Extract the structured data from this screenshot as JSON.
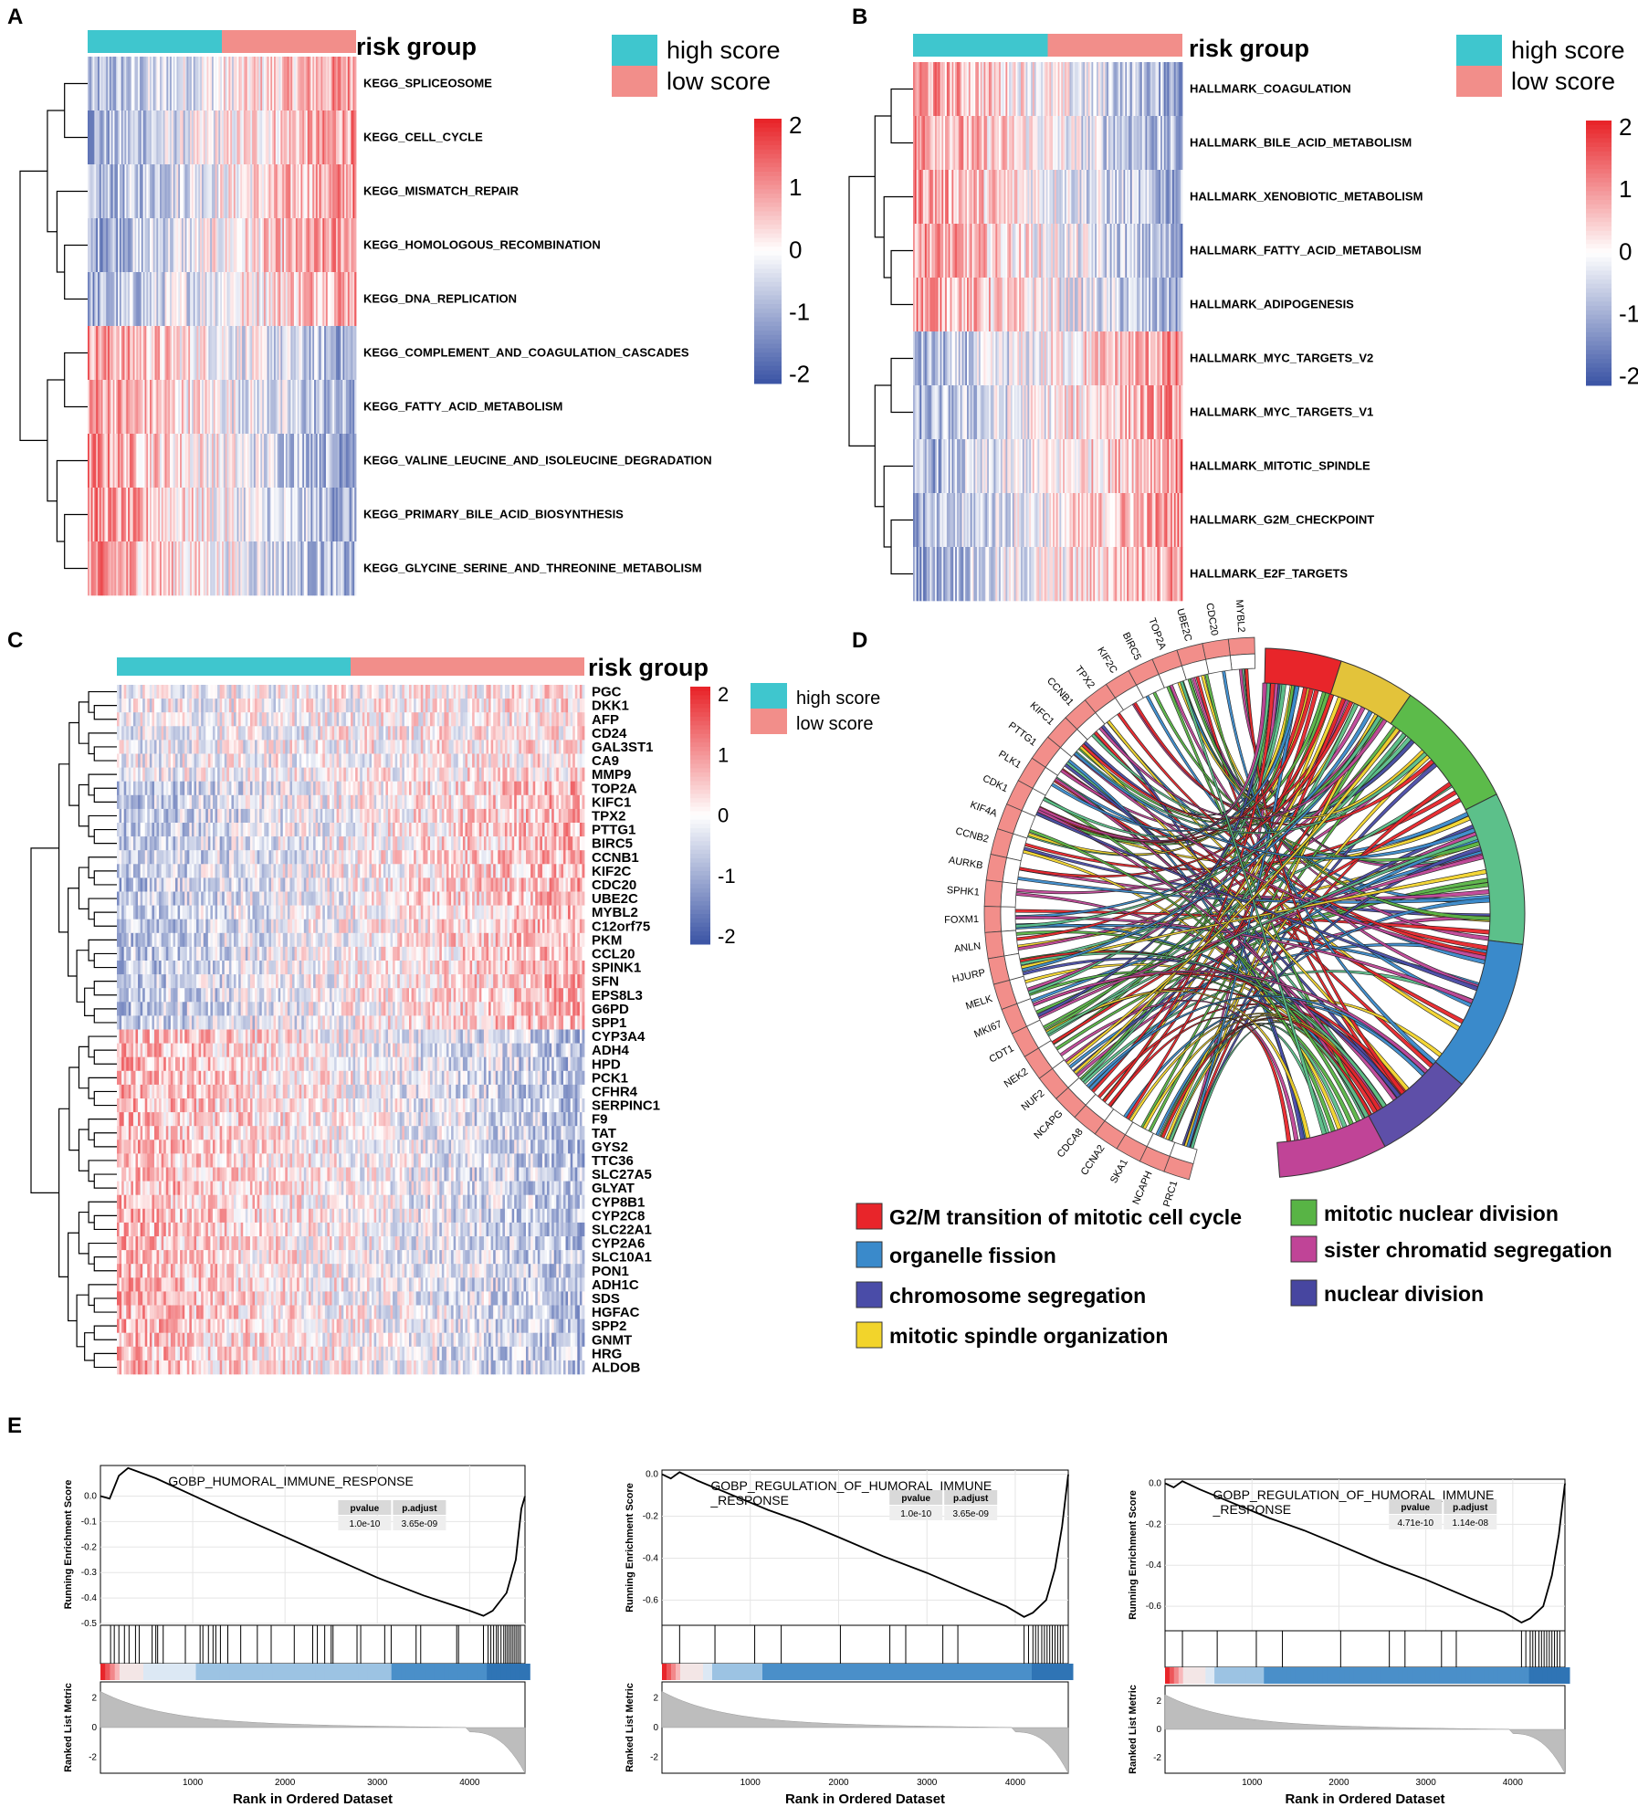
{
  "panels": {
    "a": "A",
    "b": "B",
    "c": "C",
    "d": "D",
    "e": "E"
  },
  "colors": {
    "high": "#3FC6CE",
    "low": "#F28E8A",
    "hot": "#E8252A",
    "cold": "#3D56A6",
    "mid": "#FFFFFF"
  },
  "chart_data": [
    {
      "type": "heatmap",
      "panel": "A",
      "annotation_title": "risk group",
      "legend": [
        "high score",
        "low score"
      ],
      "colorbar_ticks": [
        "2",
        "1",
        "0",
        "-1",
        "-2"
      ],
      "value_range": [
        -2,
        2
      ],
      "rows": [
        "KEGG_SPLICEOSOME",
        "KEGG_CELL_CYCLE",
        "KEGG_MISMATCH_REPAIR",
        "KEGG_HOMOLOGOUS_RECOMBINATION",
        "KEGG_DNA_REPLICATION",
        "KEGG_COMPLEMENT_AND_COAGULATION_CASCADES",
        "KEGG_FATTY_ACID_METABOLISM",
        "KEGG_VALINE_LEUCINE_AND_ISOLEUCINE_DEGRADATION",
        "KEGG_PRIMARY_BILE_ACID_BIOSYNTHESIS",
        "KEGG_GLYCINE_SERINE_AND_THREONINE_METABOLISM"
      ],
      "row_pattern": [
        1,
        1,
        1,
        1,
        1,
        -1,
        -1,
        -1,
        -1,
        -1
      ]
    },
    {
      "type": "heatmap",
      "panel": "B",
      "annotation_title": "risk group",
      "legend": [
        "high score",
        "low score"
      ],
      "colorbar_ticks": [
        "2",
        "1",
        "0",
        "-1",
        "-2"
      ],
      "value_range": [
        -2,
        2
      ],
      "rows": [
        "HALLMARK_COAGULATION",
        "HALLMARK_BILE_ACID_METABOLISM",
        "HALLMARK_XENOBIOTIC_METABOLISM",
        "HALLMARK_FATTY_ACID_METABOLISM",
        "HALLMARK_ADIPOGENESIS",
        "HALLMARK_MYC_TARGETS_V2",
        "HALLMARK_MYC_TARGETS_V1",
        "HALLMARK_MITOTIC_SPINDLE",
        "HALLMARK_G2M_CHECKPOINT",
        "HALLMARK_E2F_TARGETS"
      ],
      "row_pattern": [
        -1,
        -1,
        -1,
        -1,
        -1,
        1,
        1,
        1,
        1,
        1
      ]
    },
    {
      "type": "heatmap",
      "panel": "C",
      "annotation_title": "risk group",
      "legend": [
        "high score",
        "low score"
      ],
      "colorbar_ticks": [
        "2",
        "1",
        "0",
        "-1",
        "-2"
      ],
      "value_range": [
        -2,
        2
      ],
      "rows": [
        "PGC",
        "DKK1",
        "AFP",
        "CD24",
        "GAL3ST1",
        "CA9",
        "MMP9",
        "TOP2A",
        "KIFC1",
        "TPX2",
        "PTTG1",
        "BIRC5",
        "CCNB1",
        "KIF2C",
        "CDC20",
        "UBE2C",
        "MYBL2",
        "C12orf75",
        "PKM",
        "CCL20",
        "SPINK1",
        "SFN",
        "EPS8L3",
        "G6PD",
        "SPP1",
        "CYP3A4",
        "ADH4",
        "HPD",
        "PCK1",
        "CFHR4",
        "SERPINC1",
        "F9",
        "TAT",
        "GYS2",
        "TTC36",
        "SLC27A5",
        "GLYAT",
        "CYP8B1",
        "CYP2C8",
        "SLC22A1",
        "CYP2A6",
        "SLC10A1",
        "PON1",
        "ADH1C",
        "SDS",
        "HGFAC",
        "SPP2",
        "GNMT",
        "HRG",
        "ALDOB"
      ]
    },
    {
      "type": "chord",
      "panel": "D",
      "genes": [
        "MYBL2",
        "CDC20",
        "UBE2C",
        "TOP2A",
        "BIRC5",
        "KIF2C",
        "TPX2",
        "CCNB1",
        "KIFC1",
        "PTTG1",
        "PLK1",
        "CDK1",
        "KIF4A",
        "CCNB2",
        "AURKB",
        "SPHK1",
        "FOXM1",
        "ANLN",
        "HJURP",
        "MELK",
        "MKI67",
        "CDT1",
        "NEK2",
        "NUF2",
        "NCAPG",
        "CDCA8",
        "CCNA2",
        "SKA1",
        "NCAPH",
        "PRC1"
      ],
      "terms": [
        {
          "name": "G2/M transition of mitotic cell cycle",
          "color": "#E8252A"
        },
        {
          "name": "organelle fission",
          "color": "#3A8ACB"
        },
        {
          "name": "chromosome segregation",
          "color": "#4A4CA8"
        },
        {
          "name": "mitotic spindle organization",
          "color": "#F2D42B"
        },
        {
          "name": "mitotic nuclear division",
          "color": "#58B445"
        },
        {
          "name": "sister chromatid segregation",
          "color": "#C04497"
        },
        {
          "name": "nuclear division",
          "color": "#4746A0"
        }
      ],
      "ring_terms": [
        {
          "color": "#E8252A",
          "span": 0.07
        },
        {
          "color": "#E3C33A",
          "span": 0.07
        },
        {
          "color": "#5CBB4A",
          "span": 0.12
        },
        {
          "color": "#5CC08A",
          "span": 0.14
        },
        {
          "color": "#3A8ACB",
          "span": 0.14
        },
        {
          "color": "#5E4FA8",
          "span": 0.09
        },
        {
          "color": "#C04497",
          "span": 0.1
        }
      ]
    },
    {
      "type": "line",
      "panel": "E1",
      "title": "GOBP_HUMORAL_IMMUNE_RESPONSE",
      "title2": "",
      "ylabel": "Running Enrichment Score",
      "ylabel2": "Ranked List Metric",
      "xlabel": "Rank in Ordered Dataset",
      "ylim": [
        -0.5,
        0.12
      ],
      "yticks": [
        "0.0",
        "-0.1",
        "-0.2",
        "-0.3",
        "-0.4",
        "-0.5"
      ],
      "ytick_vals": [
        0,
        -0.1,
        -0.2,
        -0.3,
        -0.4,
        -0.5
      ],
      "xlim": [
        0,
        4600
      ],
      "xticks": [
        "1000",
        "2000",
        "3000",
        "4000"
      ],
      "xtick_vals": [
        1000,
        2000,
        3000,
        4000
      ],
      "metric_ticks": [
        "2",
        "0",
        "-2"
      ],
      "table": {
        "h1": "pvalue",
        "h2": "p.adjust",
        "v1": "1.0e-10",
        "v2": "3.65e-09"
      },
      "curve": [
        [
          0,
          0
        ],
        [
          100,
          -0.01
        ],
        [
          200,
          0.08
        ],
        [
          300,
          0.11
        ],
        [
          450,
          0.09
        ],
        [
          600,
          0.07
        ],
        [
          900,
          0.02
        ],
        [
          1200,
          -0.03
        ],
        [
          1500,
          -0.08
        ],
        [
          2000,
          -0.16
        ],
        [
          2500,
          -0.24
        ],
        [
          3000,
          -0.32
        ],
        [
          3500,
          -0.39
        ],
        [
          4000,
          -0.45
        ],
        [
          4150,
          -0.47
        ],
        [
          4250,
          -0.45
        ],
        [
          4400,
          -0.38
        ],
        [
          4500,
          -0.25
        ],
        [
          4560,
          -0.05
        ],
        [
          4600,
          0
        ]
      ],
      "hits": [
        110,
        150,
        200,
        260,
        310,
        380,
        420,
        560,
        600,
        620,
        680,
        920,
        1080,
        1110,
        1170,
        1220,
        1250,
        1300,
        1380,
        1520,
        1700,
        1850,
        2100,
        2300,
        2350,
        2430,
        2500,
        2520,
        2780,
        2820,
        3080,
        3150,
        3420,
        3470,
        3860,
        3880,
        4150,
        4200,
        4230,
        4260,
        4290,
        4310,
        4340,
        4370,
        4390,
        4410,
        4430,
        4450,
        4470,
        4490,
        4510,
        4530,
        4550
      ]
    },
    {
      "type": "line",
      "panel": "E2",
      "title": "GOBP_REGULATION_OF_HUMORAL_IMMUNE",
      "title2": "_RESPONSE",
      "ylabel": "Running Enrichment Score",
      "ylabel2": "Ranked List Metric",
      "xlabel": "Rank in Ordered Dataset",
      "ylim": [
        -0.72,
        0.02
      ],
      "yticks": [
        "0.0",
        "-0.2",
        "-0.4",
        "-0.6"
      ],
      "ytick_vals": [
        0,
        -0.2,
        -0.4,
        -0.6
      ],
      "xlim": [
        0,
        4600
      ],
      "xticks": [
        "1000",
        "2000",
        "3000",
        "4000"
      ],
      "xtick_vals": [
        1000,
        2000,
        3000,
        4000
      ],
      "metric_ticks": [
        "2",
        "0",
        "-2"
      ],
      "table": {
        "h1": "pvalue",
        "h2": "p.adjust",
        "v1": "1.0e-10",
        "v2": "3.65e-09"
      },
      "curve": [
        [
          0,
          0
        ],
        [
          100,
          -0.02
        ],
        [
          200,
          0.01
        ],
        [
          400,
          -0.03
        ],
        [
          800,
          -0.1
        ],
        [
          1200,
          -0.17
        ],
        [
          1600,
          -0.23
        ],
        [
          2000,
          -0.3
        ],
        [
          2500,
          -0.39
        ],
        [
          3000,
          -0.47
        ],
        [
          3500,
          -0.56
        ],
        [
          3900,
          -0.63
        ],
        [
          4100,
          -0.68
        ],
        [
          4200,
          -0.66
        ],
        [
          4350,
          -0.6
        ],
        [
          4450,
          -0.45
        ],
        [
          4530,
          -0.25
        ],
        [
          4600,
          0
        ]
      ],
      "hits": [
        200,
        600,
        1050,
        1350,
        2020,
        2580,
        2760,
        3180,
        3350,
        4100,
        4150,
        4200,
        4230,
        4260,
        4300,
        4330,
        4360,
        4390,
        4420,
        4450,
        4480,
        4510,
        4540
      ]
    },
    {
      "type": "line",
      "panel": "E3",
      "title": "GOBP_REGULATION_OF_HUMORAL_IMMUNE",
      "title2": "_RESPONSE",
      "ylabel": "Running Enrichment Score",
      "ylabel2": "Ranked List Metric",
      "xlabel": "Rank in Ordered Dataset",
      "ylim": [
        -0.72,
        0.02
      ],
      "yticks": [
        "0.0",
        "-0.2",
        "-0.4",
        "-0.6"
      ],
      "ytick_vals": [
        0,
        -0.2,
        -0.4,
        -0.6
      ],
      "xlim": [
        0,
        4600
      ],
      "xticks": [
        "1000",
        "2000",
        "3000",
        "4000"
      ],
      "xtick_vals": [
        1000,
        2000,
        3000,
        4000
      ],
      "metric_ticks": [
        "2",
        "0",
        "-2"
      ],
      "table": {
        "h1": "pvalue",
        "h2": "p.adjust",
        "v1": "4.71e-10",
        "v2": "1.14e-08"
      },
      "curve": [
        [
          0,
          0
        ],
        [
          100,
          -0.02
        ],
        [
          200,
          0.01
        ],
        [
          400,
          -0.03
        ],
        [
          800,
          -0.1
        ],
        [
          1200,
          -0.17
        ],
        [
          1600,
          -0.23
        ],
        [
          2000,
          -0.3
        ],
        [
          2500,
          -0.39
        ],
        [
          3000,
          -0.47
        ],
        [
          3500,
          -0.56
        ],
        [
          3900,
          -0.63
        ],
        [
          4100,
          -0.68
        ],
        [
          4200,
          -0.66
        ],
        [
          4350,
          -0.6
        ],
        [
          4450,
          -0.45
        ],
        [
          4530,
          -0.25
        ],
        [
          4600,
          0
        ]
      ],
      "hits": [
        200,
        600,
        1050,
        1350,
        2020,
        2580,
        2760,
        3180,
        3350,
        4100,
        4150,
        4200,
        4230,
        4260,
        4300,
        4330,
        4360,
        4390,
        4420,
        4450,
        4480,
        4510,
        4540
      ]
    }
  ]
}
